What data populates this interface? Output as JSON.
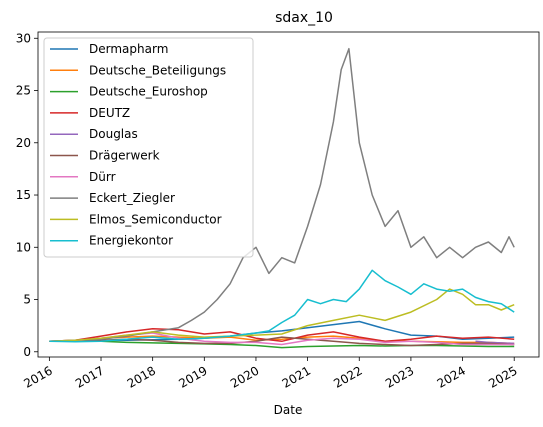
{
  "chart_data": {
    "type": "line",
    "title": "sdax_10",
    "xlabel": "Date",
    "ylabel": "",
    "xlim": [
      2015.78,
      2025.48
    ],
    "ylim": [
      -0.5,
      30.6
    ],
    "xticks": [
      2016,
      2017,
      2018,
      2019,
      2020,
      2021,
      2022,
      2023,
      2024,
      2025
    ],
    "yticks": [
      0,
      5,
      10,
      15,
      20,
      25,
      30
    ],
    "grid": false,
    "legend_position": "top-left",
    "series": [
      {
        "name": "Dermapharm",
        "color": "#1f77b4",
        "x": [
          2016.0,
          2016.5,
          2017.0,
          2017.5,
          2018.0,
          2018.5,
          2019.0,
          2019.5,
          2020.0,
          2020.5,
          2021.0,
          2021.5,
          2022.0,
          2022.5,
          2023.0,
          2023.5,
          2024.0,
          2024.5,
          2025.0
        ],
        "y": [
          1.0,
          1.0,
          1.05,
          1.1,
          1.15,
          1.2,
          1.3,
          1.5,
          1.8,
          2.0,
          2.3,
          2.6,
          2.9,
          2.2,
          1.6,
          1.5,
          1.2,
          1.3,
          1.4
        ]
      },
      {
        "name": "Deutsche_Beteiligungs",
        "color": "#ff7f0e",
        "x": [
          2016.0,
          2016.5,
          2017.0,
          2017.5,
          2018.0,
          2018.5,
          2019.0,
          2019.5,
          2020.0,
          2020.5,
          2021.0,
          2021.5,
          2022.0,
          2022.5,
          2023.0,
          2023.5,
          2024.0,
          2024.5,
          2025.0
        ],
        "y": [
          1.0,
          1.1,
          1.3,
          1.4,
          1.5,
          1.4,
          1.3,
          1.4,
          1.1,
          1.2,
          1.4,
          1.5,
          1.3,
          1.0,
          1.0,
          0.95,
          0.9,
          0.9,
          0.8
        ]
      },
      {
        "name": "Deutsche_Euroshop",
        "color": "#2ca02c",
        "x": [
          2016.0,
          2016.5,
          2017.0,
          2017.5,
          2018.0,
          2018.5,
          2019.0,
          2019.5,
          2020.0,
          2020.5,
          2021.0,
          2021.5,
          2022.0,
          2022.5,
          2023.0,
          2023.5,
          2024.0,
          2024.5,
          2025.0
        ],
        "y": [
          1.0,
          1.0,
          1.0,
          0.9,
          0.85,
          0.8,
          0.75,
          0.7,
          0.6,
          0.4,
          0.5,
          0.55,
          0.6,
          0.55,
          0.6,
          0.6,
          0.55,
          0.5,
          0.5
        ]
      },
      {
        "name": "DEUTZ",
        "color": "#d62728",
        "x": [
          2016.0,
          2016.5,
          2017.0,
          2017.5,
          2018.0,
          2018.5,
          2019.0,
          2019.5,
          2020.0,
          2020.5,
          2021.0,
          2021.5,
          2022.0,
          2022.5,
          2023.0,
          2023.5,
          2024.0,
          2024.5,
          2025.0
        ],
        "y": [
          1.0,
          1.1,
          1.5,
          1.9,
          2.2,
          2.1,
          1.7,
          1.9,
          1.3,
          1.0,
          1.6,
          1.9,
          1.4,
          1.0,
          1.2,
          1.5,
          1.3,
          1.4,
          1.2
        ]
      },
      {
        "name": "Douglas",
        "color": "#9467bd",
        "x": [
          2024.25,
          2024.5,
          2024.75,
          2025.0
        ],
        "y": [
          1.0,
          0.9,
          0.85,
          0.8
        ]
      },
      {
        "name": "Drägerwerk",
        "color": "#8c564b",
        "x": [
          2016.0,
          2016.5,
          2017.0,
          2017.5,
          2018.0,
          2018.5,
          2019.0,
          2019.5,
          2020.0,
          2020.5,
          2021.0,
          2021.5,
          2022.0,
          2022.5,
          2023.0,
          2023.5,
          2024.0,
          2024.5,
          2025.0
        ],
        "y": [
          1.0,
          1.0,
          1.1,
          1.2,
          1.1,
          0.9,
          0.8,
          0.8,
          1.0,
          1.4,
          1.2,
          1.0,
          0.8,
          0.7,
          0.6,
          0.7,
          0.8,
          0.8,
          0.7
        ]
      },
      {
        "name": "Dürr",
        "color": "#e377c2",
        "x": [
          2016.0,
          2016.5,
          2017.0,
          2017.5,
          2018.0,
          2018.5,
          2019.0,
          2019.5,
          2020.0,
          2020.5,
          2021.0,
          2021.5,
          2022.0,
          2022.5,
          2023.0,
          2023.5,
          2024.0,
          2024.5,
          2025.0
        ],
        "y": [
          1.0,
          1.05,
          1.3,
          1.6,
          1.8,
          1.3,
          1.0,
          0.9,
          0.9,
          0.7,
          1.1,
          1.3,
          1.2,
          0.9,
          1.0,
          0.9,
          0.7,
          0.7,
          0.7
        ]
      },
      {
        "name": "Eckert_Ziegler",
        "color": "#7f7f7f",
        "x": [
          2016.0,
          2016.5,
          2017.0,
          2017.5,
          2018.0,
          2018.5,
          2018.75,
          2019.0,
          2019.25,
          2019.5,
          2019.75,
          2020.0,
          2020.25,
          2020.5,
          2020.75,
          2021.0,
          2021.25,
          2021.5,
          2021.65,
          2021.8,
          2022.0,
          2022.25,
          2022.5,
          2022.75,
          2023.0,
          2023.25,
          2023.5,
          2023.75,
          2024.0,
          2024.25,
          2024.5,
          2024.75,
          2024.9,
          2025.0
        ],
        "y": [
          1.0,
          1.1,
          1.2,
          1.5,
          1.9,
          2.3,
          3.0,
          3.8,
          5.0,
          6.5,
          9.0,
          10.0,
          7.5,
          9.0,
          8.5,
          12.0,
          16.0,
          22.0,
          27.0,
          29.0,
          20.0,
          15.0,
          12.0,
          13.5,
          10.0,
          11.0,
          9.0,
          10.0,
          9.0,
          10.0,
          10.5,
          9.5,
          11.0,
          10.0
        ]
      },
      {
        "name": "Elmos_Semiconductor",
        "color": "#bcbd22",
        "x": [
          2016.0,
          2016.5,
          2017.0,
          2017.5,
          2018.0,
          2018.5,
          2019.0,
          2019.5,
          2020.0,
          2020.5,
          2021.0,
          2021.5,
          2022.0,
          2022.5,
          2023.0,
          2023.5,
          2023.75,
          2024.0,
          2024.25,
          2024.5,
          2024.75,
          2025.0
        ],
        "y": [
          1.0,
          1.1,
          1.3,
          1.6,
          1.9,
          1.6,
          1.4,
          1.5,
          1.6,
          1.7,
          2.5,
          3.0,
          3.5,
          3.0,
          3.8,
          5.0,
          6.0,
          5.5,
          4.5,
          4.5,
          4.0,
          4.5
        ]
      },
      {
        "name": "Energiekontor",
        "color": "#17becf",
        "x": [
          2016.0,
          2016.5,
          2017.0,
          2017.5,
          2018.0,
          2018.5,
          2019.0,
          2019.5,
          2020.0,
          2020.25,
          2020.5,
          2020.75,
          2021.0,
          2021.25,
          2021.5,
          2021.75,
          2022.0,
          2022.25,
          2022.5,
          2022.75,
          2023.0,
          2023.25,
          2023.5,
          2023.75,
          2024.0,
          2024.25,
          2024.5,
          2024.75,
          2025.0
        ],
        "y": [
          1.0,
          0.95,
          1.0,
          1.2,
          1.4,
          1.2,
          1.3,
          1.5,
          1.8,
          2.0,
          2.8,
          3.5,
          5.0,
          4.6,
          5.0,
          4.8,
          6.0,
          7.8,
          6.8,
          6.2,
          5.5,
          6.5,
          6.0,
          5.8,
          6.0,
          5.2,
          4.8,
          4.6,
          3.8
        ]
      }
    ]
  }
}
